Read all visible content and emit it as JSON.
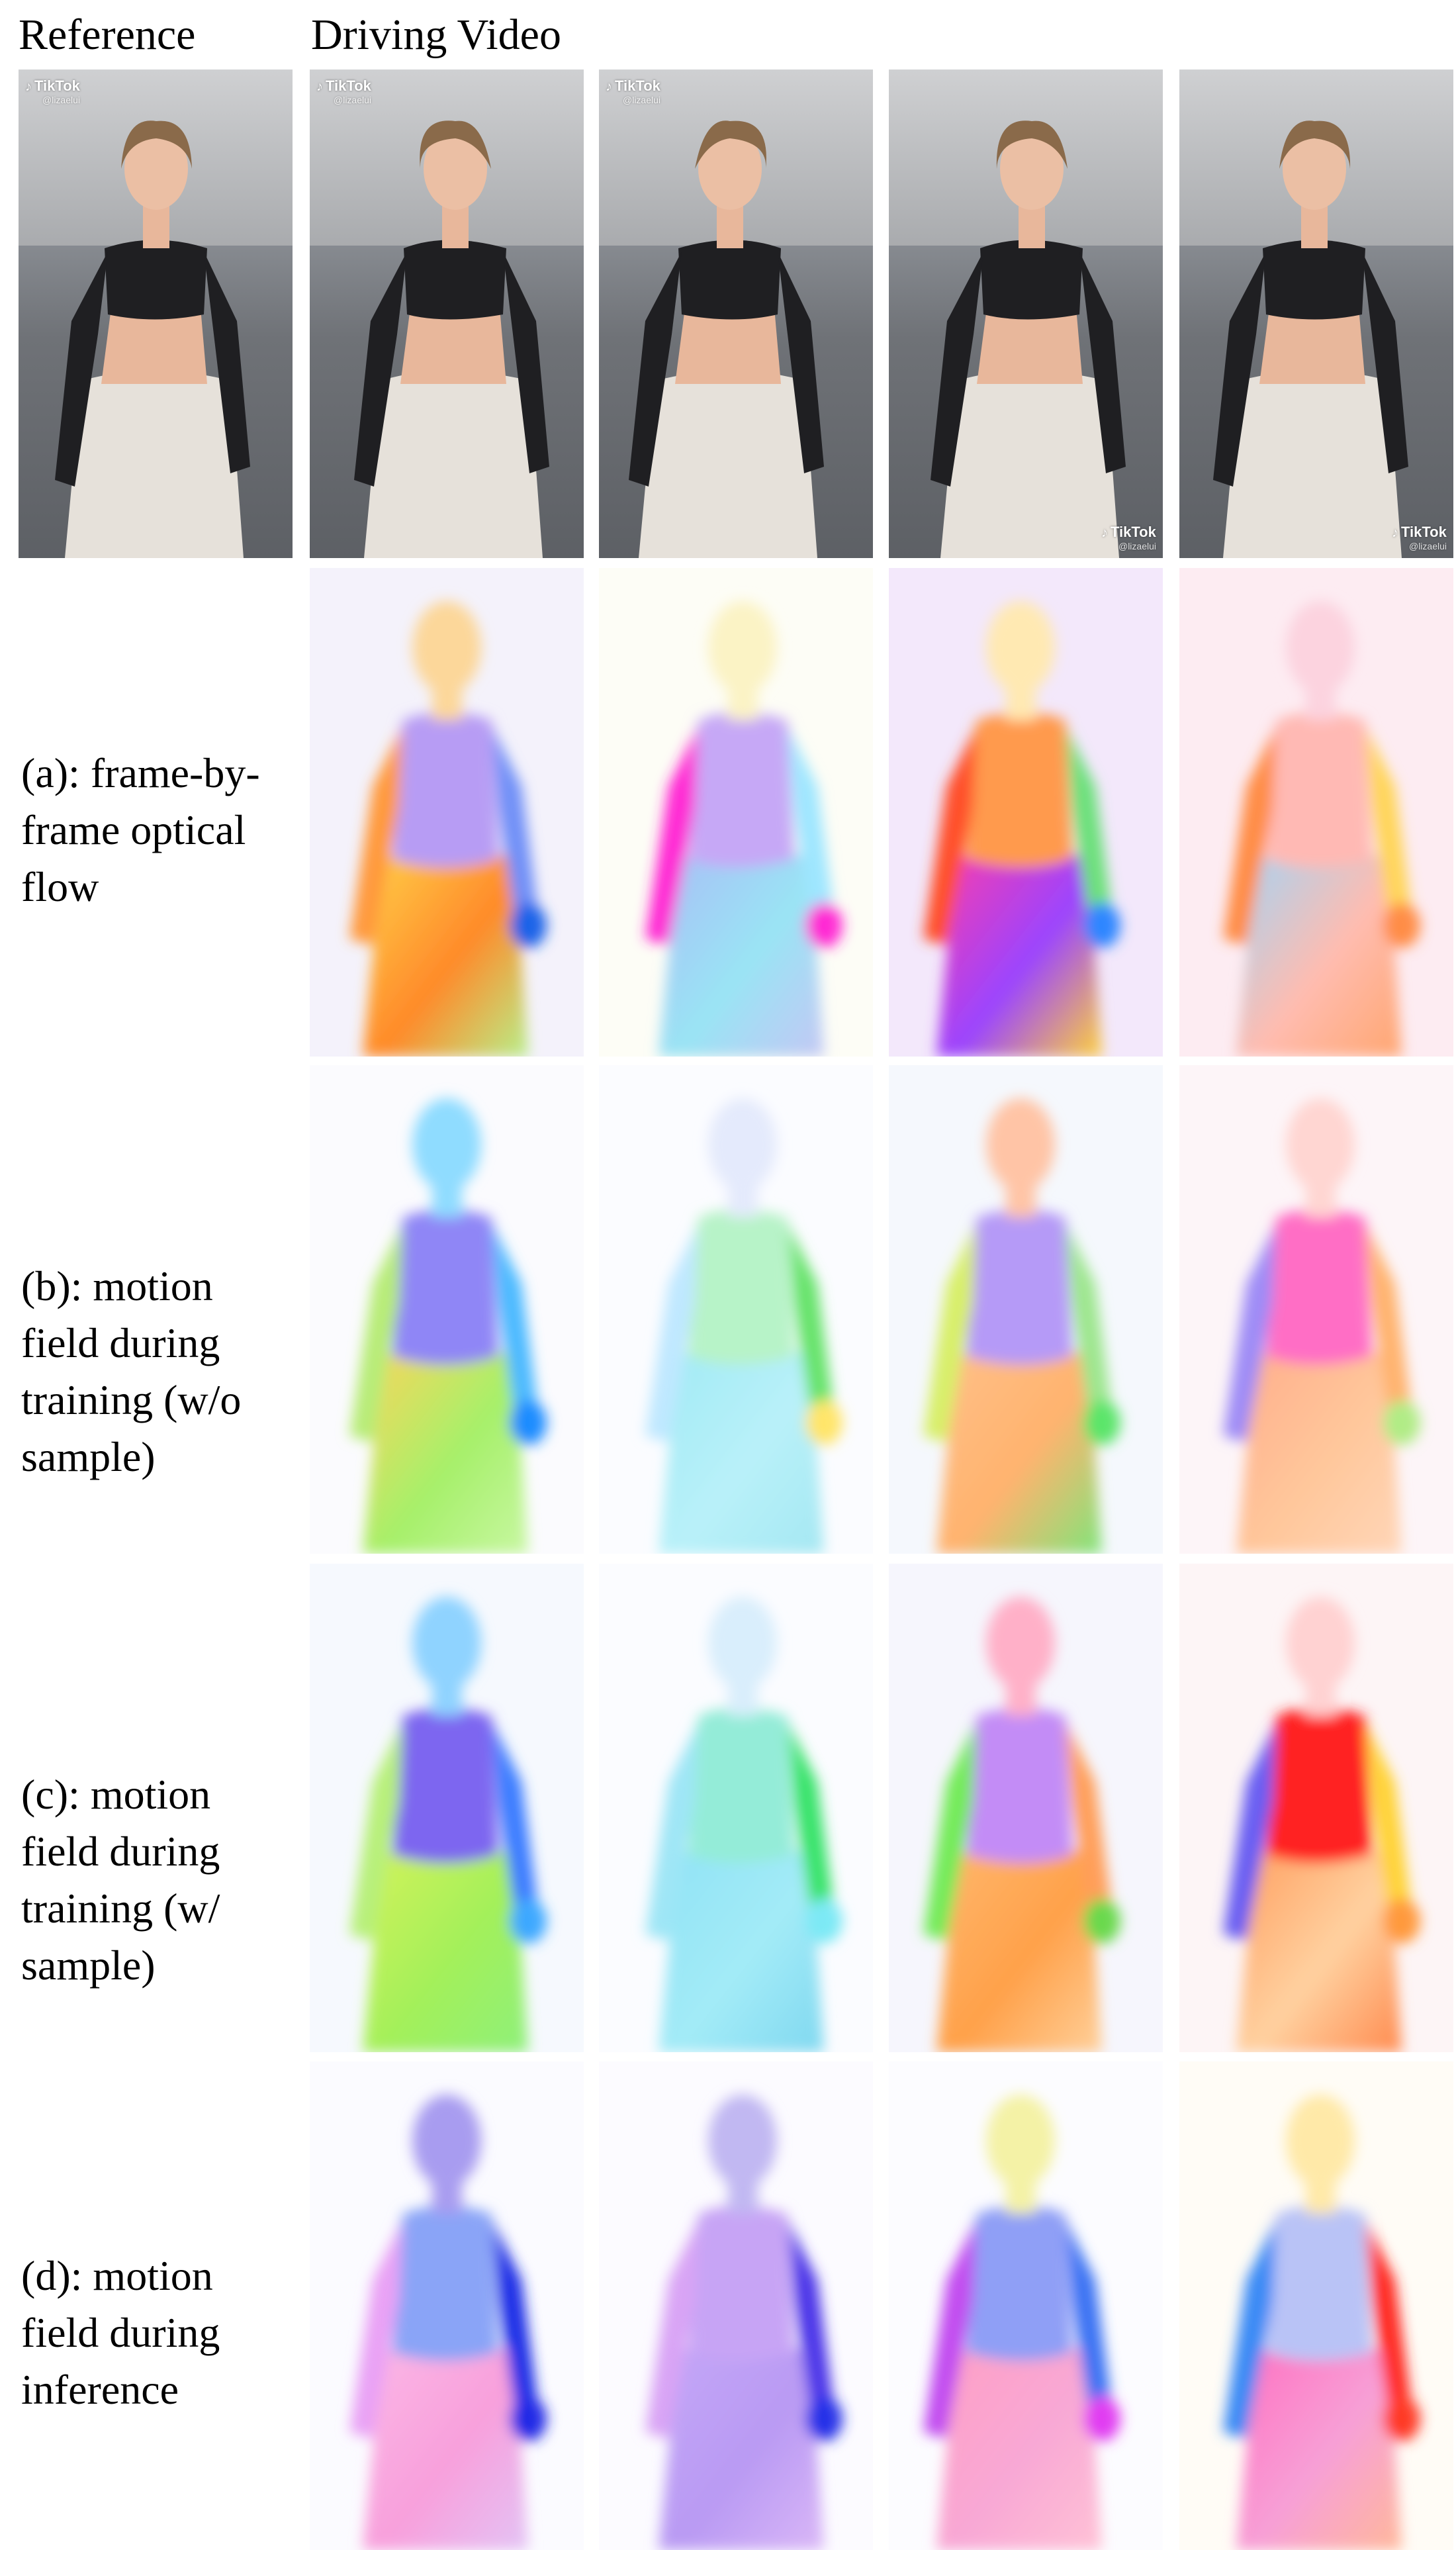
{
  "headers": {
    "reference": "Reference",
    "driving_video": "Driving Video"
  },
  "watermark": {
    "brand": "TikTok",
    "handle": "@lizaelui"
  },
  "rows": [
    {
      "id": "a",
      "lines": [
        "(a): frame-by-",
        "frame optical",
        "flow"
      ]
    },
    {
      "id": "b",
      "lines": [
        "(b): motion",
        "field during",
        "training (w/o",
        "sample)"
      ]
    },
    {
      "id": "c",
      "lines": [
        "(c): motion",
        "field during",
        "training (w/",
        "sample)"
      ]
    },
    {
      "id": "d",
      "lines": [
        "(d): motion",
        "field during",
        "inference"
      ]
    }
  ],
  "colors": {
    "a": [
      {
        "bg": "#f4f2fb",
        "head": "#fcd79a",
        "torso": "#b79cf4",
        "armL": "#ff9a3c",
        "armR": "#6f8ff7",
        "hand": "#1e63e8",
        "legs": "#ffd44a",
        "legs2": "#ff8a2a",
        "legs3": "#b7f08a"
      },
      {
        "bg": "#fdfdf6",
        "head": "#fbf3c5",
        "torso": "#c6a8f6",
        "armL": "#ff2ad4",
        "armR": "#9ee6ff",
        "hand": "#ff2ad4",
        "legs": "#a9bdf6",
        "legs2": "#9ae4f4",
        "legs3": "#c3c7f4"
      },
      {
        "bg": "#f3e8fb",
        "head": "#ffe9b2",
        "torso": "#ff9a4d",
        "armL": "#ff4f2a",
        "armR": "#6ce07a",
        "hand": "#2f86ff",
        "legs": "#ff3ba8",
        "legs2": "#9b45ff",
        "legs3": "#ffd23a"
      },
      {
        "bg": "#fdecf2",
        "head": "#fcd3df",
        "torso": "#ffb9b4",
        "armL": "#ff8d47",
        "armR": "#ffd55a",
        "hand": "#ff8d47",
        "legs": "#9fd5f8",
        "legs2": "#ffbcb0",
        "legs3": "#ffa670"
      }
    ],
    "b": [
      {
        "bg": "#fbfbfe",
        "head": "#8fdcff",
        "torso": "#8f86f6",
        "armL": "#b8ec78",
        "armR": "#4bb9ff",
        "hand": "#1b8cff",
        "legs": "#ffd45a",
        "legs2": "#a6f06a",
        "legs3": "#c8f7a2"
      },
      {
        "bg": "#fbfcff",
        "head": "#e4eafc",
        "torso": "#b7f3c8",
        "armL": "#bfe8ff",
        "armR": "#66e36b",
        "hand": "#ffe56b",
        "legs": "#9fe9f5",
        "legs2": "#b9f1f9",
        "legs3": "#a4e7f2"
      },
      {
        "bg": "#f5f8fd",
        "head": "#ffc4a6",
        "torso": "#b59af7",
        "armL": "#d8ef6a",
        "armR": "#9de68e",
        "hand": "#5ce56a",
        "legs": "#ffc08a",
        "legs2": "#ffb36e",
        "legs3": "#7fe57a"
      },
      {
        "bg": "#fdf5f8",
        "head": "#ffd6d2",
        "torso": "#ff6ec5",
        "armL": "#9f8cf6",
        "armR": "#ffb36e",
        "hand": "#b1ec86",
        "legs": "#ffac8a",
        "legs2": "#ffc79b",
        "legs3": "#ffd6b8"
      }
    ],
    "c": [
      {
        "bg": "#f6f9fe",
        "head": "#8fd3ff",
        "torso": "#7d66f0",
        "armL": "#b8f07a",
        "armR": "#3a7bff",
        "hand": "#3ea8ff",
        "legs": "#d6f35a",
        "legs2": "#a3f05a",
        "legs3": "#8ef07a"
      },
      {
        "bg": "#fbfcff",
        "head": "#d9eefc",
        "torso": "#94ecd8",
        "armL": "#9fe6f6",
        "armR": "#38e36a",
        "hand": "#7de9f5",
        "legs": "#8fe2f6",
        "legs2": "#a3ebf7",
        "legs3": "#7fd8f0"
      },
      {
        "bg": "#f6f6fd",
        "head": "#ffb0c8",
        "torso": "#c38cf6",
        "armL": "#74eb5a",
        "armR": "#ff9f5a",
        "hand": "#6ad94e",
        "legs": "#ffb86e",
        "legs2": "#ffa14a",
        "legs3": "#ffd09a"
      },
      {
        "bg": "#fdf5f6",
        "head": "#ffd2d2",
        "torso": "#ff2222",
        "armL": "#6b5ff2",
        "armR": "#ffd338",
        "hand": "#ff9a3c",
        "legs": "#ff9c5c",
        "legs2": "#ffd1a0",
        "legs3": "#ff8a4e"
      }
    ],
    "d": [
      {
        "bg": "#fbfbff",
        "head": "#a89cf0",
        "torso": "#8aa4f7",
        "armL": "#e9a2f5",
        "armR": "#1b2fe6",
        "hand": "#2229e6",
        "legs": "#fbb8e6",
        "legs2": "#f8a0dc",
        "legs3": "#e3c3f5"
      },
      {
        "bg": "#fcfbff",
        "head": "#c1b8f2",
        "torso": "#c7a4f5",
        "armL": "#d9a4f5",
        "armR": "#4b36e8",
        "hand": "#2531e8",
        "legs": "#c5a8f7",
        "legs2": "#b99af3",
        "legs3": "#dab7f7"
      },
      {
        "bg": "#fcfcff",
        "head": "#f4f2a6",
        "torso": "#8f9ff6",
        "armL": "#c24df0",
        "armR": "#3b72f3",
        "hand": "#e13cf2",
        "legs": "#ff9fc4",
        "legs2": "#f8a8d5",
        "legs3": "#ffc2d6"
      },
      {
        "bg": "#fffcf6",
        "head": "#ffe9a8",
        "torso": "#b9c3f6",
        "armL": "#3a8af5",
        "armR": "#ff2a22",
        "hand": "#ff3a28",
        "legs": "#ff6ec0",
        "legs2": "#f7a0d6",
        "legs3": "#ffb89a"
      }
    ]
  }
}
